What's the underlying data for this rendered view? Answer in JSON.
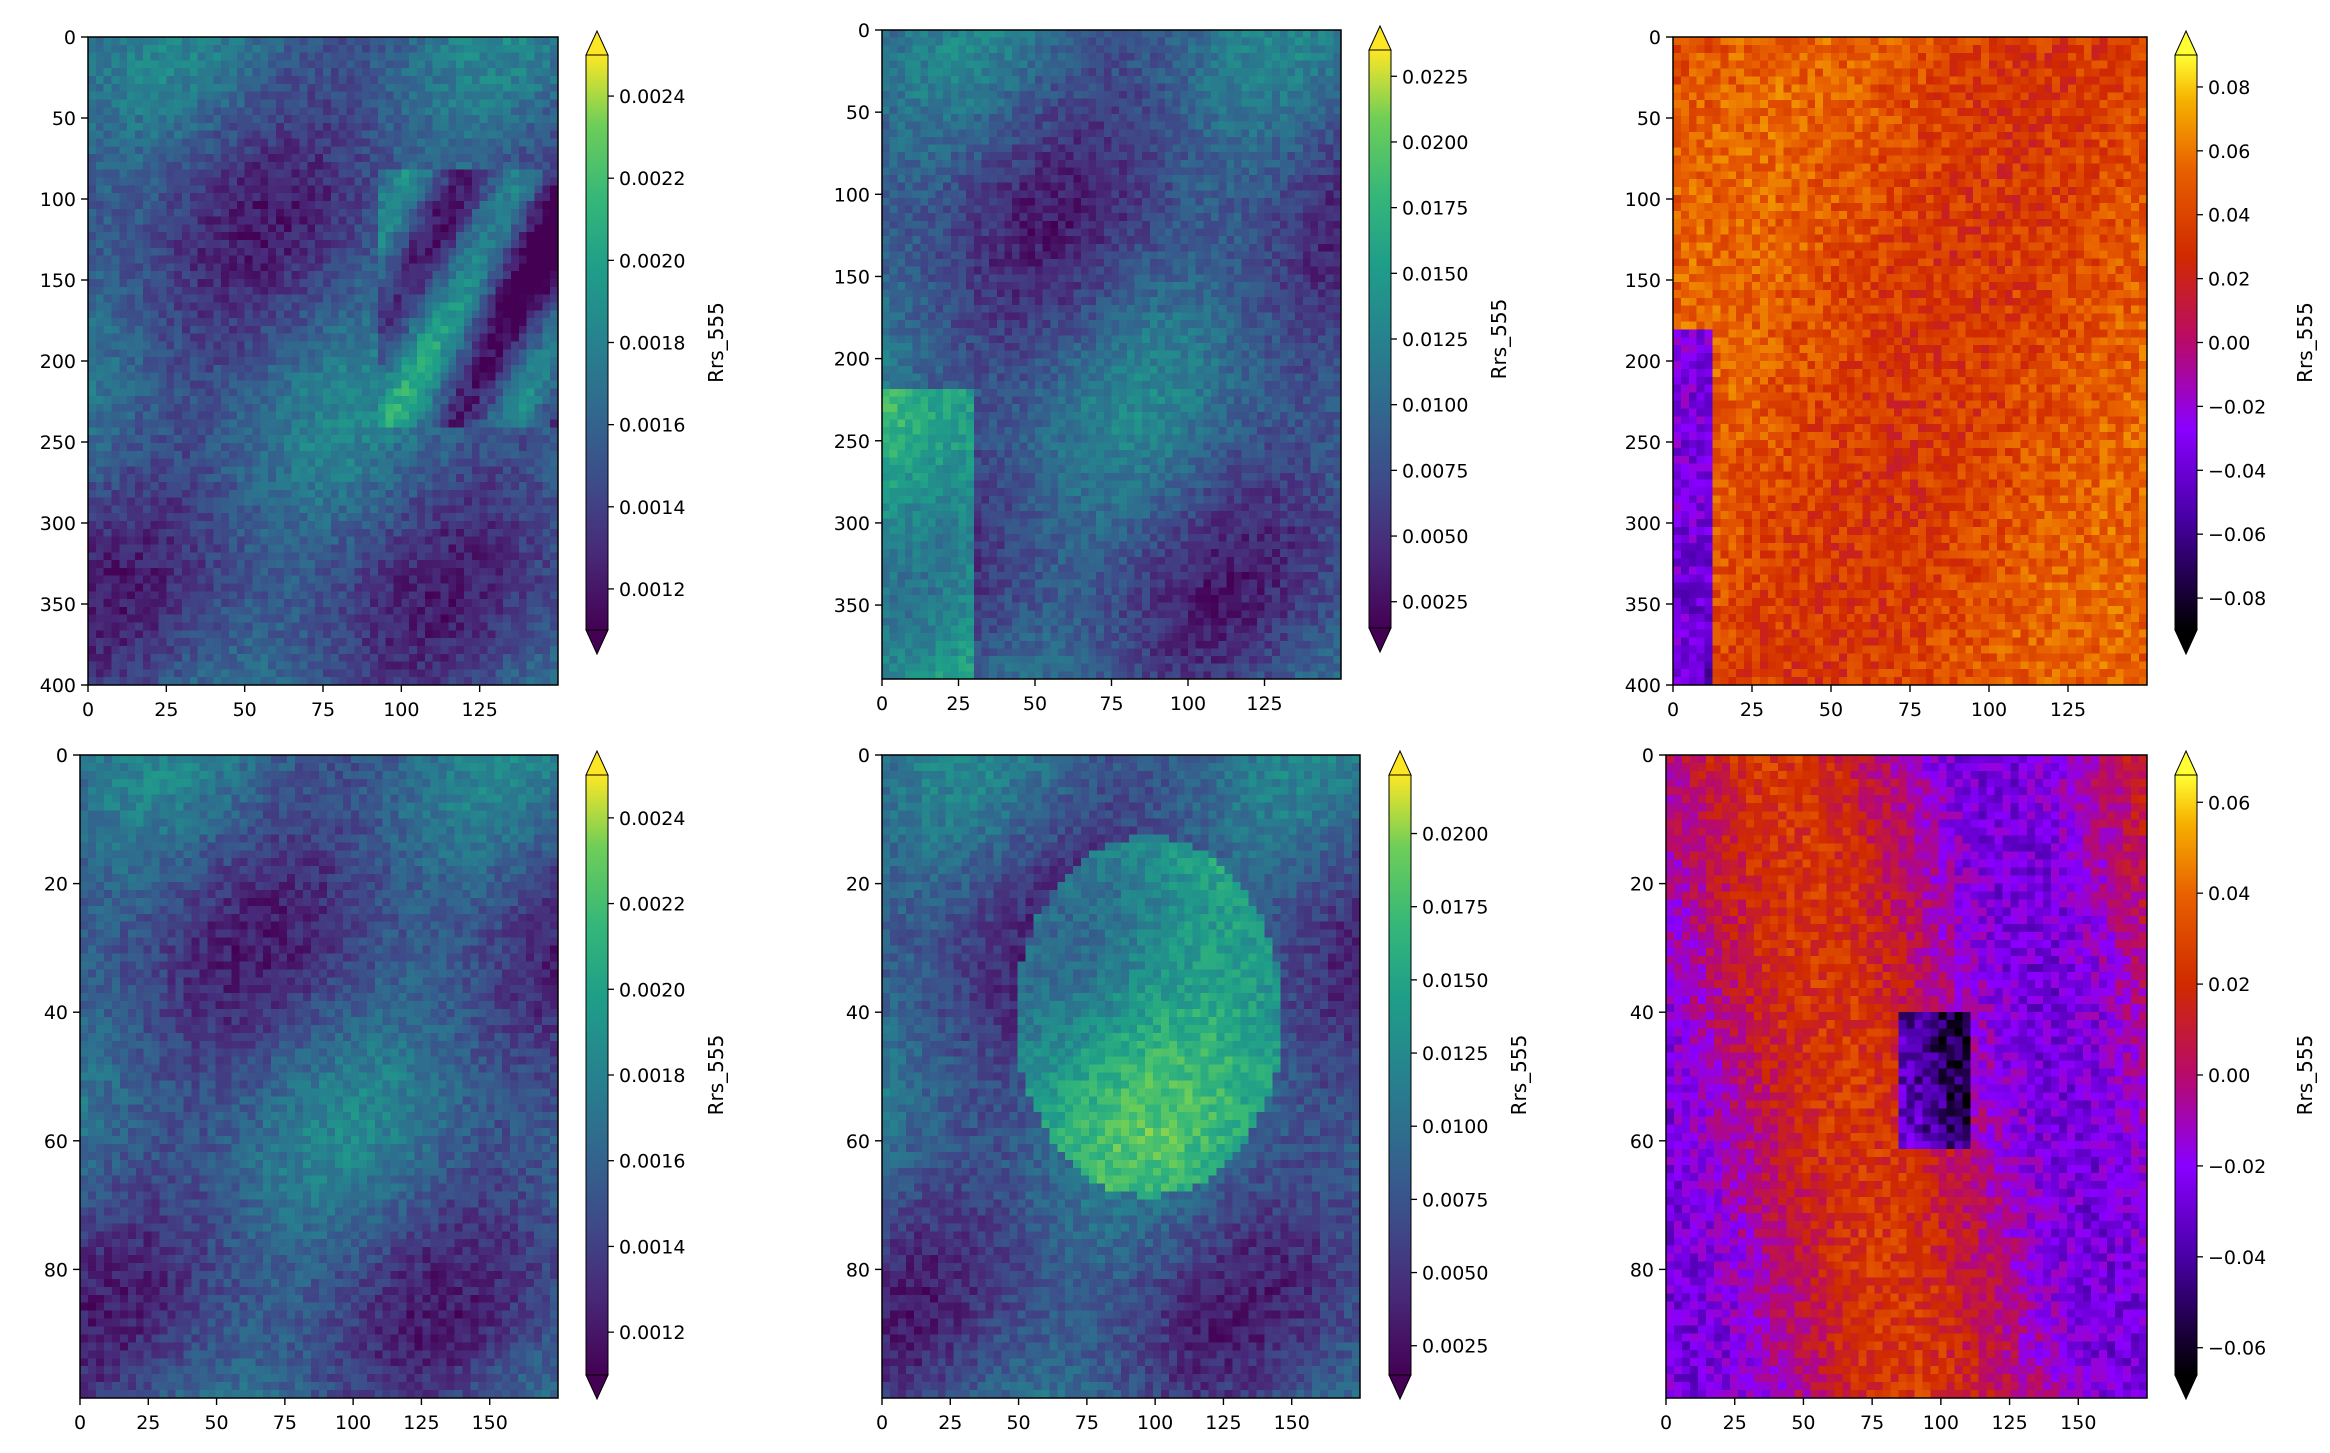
{
  "chart_data": [
    {
      "type": "heatmap",
      "colormap": "viridis",
      "x_ticks": [
        "0",
        "25",
        "50",
        "75",
        "100",
        "125"
      ],
      "x_tick_values": [
        0,
        25,
        50,
        75,
        100,
        125
      ],
      "xlim": [
        0,
        150
      ],
      "y_ticks": [
        "0",
        "50",
        "100",
        "150",
        "200",
        "250",
        "300",
        "350",
        "400"
      ],
      "y_tick_values": [
        0,
        50,
        100,
        150,
        200,
        250,
        300,
        350,
        400
      ],
      "ylim": [
        0,
        400
      ],
      "colorbar": {
        "label": "Rrs_555",
        "ticks": [
          "0.0012",
          "0.0014",
          "0.0016",
          "0.0018",
          "0.0020",
          "0.0022",
          "0.0024"
        ],
        "tick_values": [
          0.0012,
          0.0014,
          0.0016,
          0.0018,
          0.002,
          0.0022,
          0.0024
        ],
        "range": [
          0.0011,
          0.0025
        ],
        "extend": "both"
      }
    },
    {
      "type": "heatmap",
      "colormap": "viridis",
      "x_ticks": [
        "0",
        "25",
        "50",
        "75",
        "100",
        "125"
      ],
      "x_tick_values": [
        0,
        25,
        50,
        75,
        100,
        125
      ],
      "xlim": [
        0,
        150
      ],
      "y_ticks": [
        "0",
        "50",
        "100",
        "150",
        "200",
        "250",
        "300",
        "350"
      ],
      "y_tick_values": [
        0,
        50,
        100,
        150,
        200,
        250,
        300,
        350
      ],
      "ylim": [
        0,
        395
      ],
      "colorbar": {
        "label": "Rrs_555",
        "ticks": [
          "0.0025",
          "0.0050",
          "0.0075",
          "0.0100",
          "0.0125",
          "0.0150",
          "0.0175",
          "0.0200",
          "0.0225"
        ],
        "tick_values": [
          0.0025,
          0.005,
          0.0075,
          0.01,
          0.0125,
          0.015,
          0.0175,
          0.02,
          0.0225
        ],
        "range": [
          0.0015,
          0.0235
        ],
        "extend": "both"
      }
    },
    {
      "type": "heatmap",
      "colormap": "gnuplot",
      "x_ticks": [
        "0",
        "25",
        "50",
        "75",
        "100",
        "125"
      ],
      "x_tick_values": [
        0,
        25,
        50,
        75,
        100,
        125
      ],
      "xlim": [
        0,
        150
      ],
      "y_ticks": [
        "0",
        "50",
        "100",
        "150",
        "200",
        "250",
        "300",
        "350",
        "400"
      ],
      "y_tick_values": [
        0,
        50,
        100,
        150,
        200,
        250,
        300,
        350,
        400
      ],
      "ylim": [
        0,
        400
      ],
      "colorbar": {
        "label": "Rrs_555",
        "ticks": [
          "−0.08",
          "−0.06",
          "−0.04",
          "−0.02",
          "0.00",
          "0.02",
          "0.04",
          "0.06",
          "0.08"
        ],
        "tick_values": [
          -0.08,
          -0.06,
          -0.04,
          -0.02,
          0,
          0.02,
          0.04,
          0.06,
          0.08
        ],
        "range": [
          -0.09,
          0.09
        ],
        "extend": "both"
      }
    },
    {
      "type": "heatmap",
      "colormap": "viridis",
      "x_ticks": [
        "0",
        "25",
        "50",
        "75",
        "100",
        "125",
        "150"
      ],
      "x_tick_values": [
        0,
        25,
        50,
        75,
        100,
        125,
        150
      ],
      "xlim": [
        0,
        175
      ],
      "y_ticks": [
        "0",
        "20",
        "40",
        "60",
        "80"
      ],
      "y_tick_values": [
        0,
        20,
        40,
        60,
        80
      ],
      "ylim": [
        0,
        100
      ],
      "colorbar": {
        "label": "Rrs_555",
        "ticks": [
          "0.0012",
          "0.0014",
          "0.0016",
          "0.0018",
          "0.0020",
          "0.0022",
          "0.0024"
        ],
        "tick_values": [
          0.0012,
          0.0014,
          0.0016,
          0.0018,
          0.002,
          0.0022,
          0.0024
        ],
        "range": [
          0.0011,
          0.0025
        ],
        "extend": "both"
      }
    },
    {
      "type": "heatmap",
      "colormap": "viridis",
      "x_ticks": [
        "0",
        "25",
        "50",
        "75",
        "100",
        "125",
        "150"
      ],
      "x_tick_values": [
        0,
        25,
        50,
        75,
        100,
        125,
        150
      ],
      "xlim": [
        0,
        175
      ],
      "y_ticks": [
        "0",
        "20",
        "40",
        "60",
        "80"
      ],
      "y_tick_values": [
        0,
        20,
        40,
        60,
        80
      ],
      "ylim": [
        0,
        100
      ],
      "colorbar": {
        "label": "Rrs_555",
        "ticks": [
          "0.0025",
          "0.0050",
          "0.0075",
          "0.0100",
          "0.0125",
          "0.0150",
          "0.0175",
          "0.0200"
        ],
        "tick_values": [
          0.0025,
          0.005,
          0.0075,
          0.01,
          0.0125,
          0.015,
          0.0175,
          0.02
        ],
        "range": [
          0.0015,
          0.022
        ],
        "extend": "both"
      }
    },
    {
      "type": "heatmap",
      "colormap": "gnuplot",
      "x_ticks": [
        "0",
        "25",
        "50",
        "75",
        "100",
        "125",
        "150"
      ],
      "x_tick_values": [
        0,
        25,
        50,
        75,
        100,
        125,
        150
      ],
      "xlim": [
        0,
        175
      ],
      "y_ticks": [
        "0",
        "20",
        "40",
        "60",
        "80"
      ],
      "y_tick_values": [
        0,
        20,
        40,
        60,
        80
      ],
      "ylim": [
        0,
        100
      ],
      "colorbar": {
        "label": "Rrs_555",
        "ticks": [
          "−0.06",
          "−0.04",
          "−0.02",
          "0.00",
          "0.02",
          "0.04",
          "0.06"
        ],
        "tick_values": [
          -0.06,
          -0.04,
          -0.02,
          0,
          0.02,
          0.04,
          0.06
        ],
        "range": [
          -0.066,
          0.066
        ],
        "extend": "both"
      }
    }
  ]
}
